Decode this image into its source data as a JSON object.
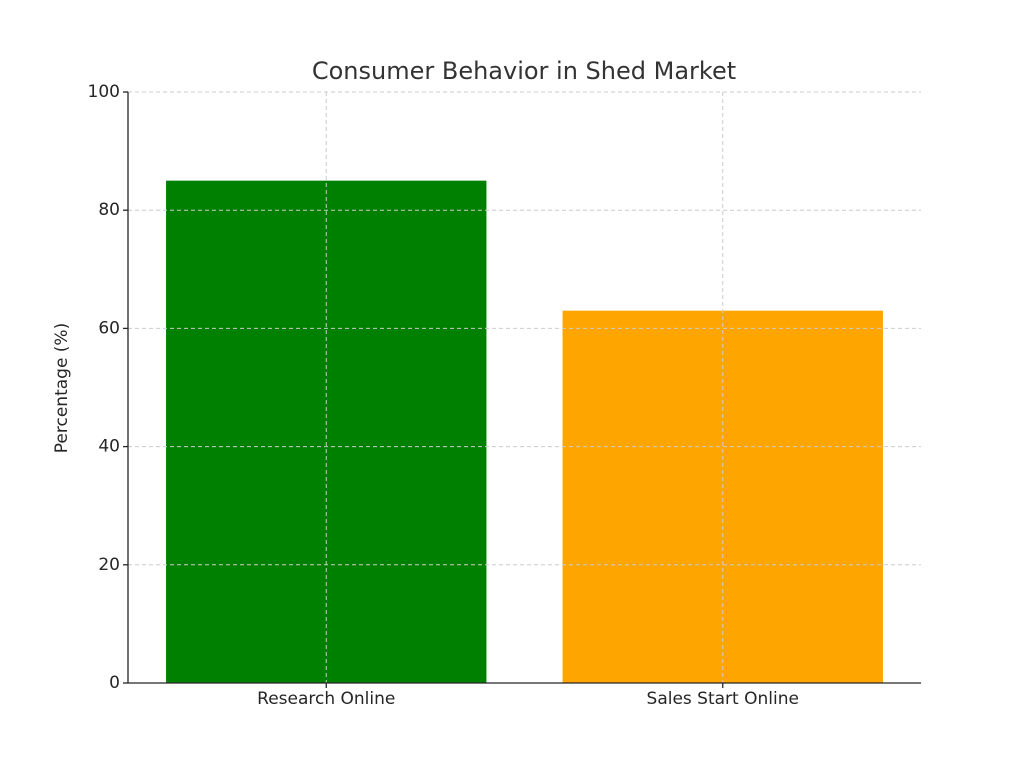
{
  "chart_data": {
    "type": "bar",
    "title": "Consumer Behavior in Shed Market",
    "y_label": "Percentage (%)",
    "categories": [
      "Research Online",
      "Sales Start Online"
    ],
    "values": [
      85,
      63
    ],
    "colors": [
      "#008000",
      "#ffa500"
    ],
    "ylim": [
      0,
      100
    ],
    "yticks": [
      0,
      20,
      40,
      60,
      80,
      100
    ],
    "grid": true
  }
}
